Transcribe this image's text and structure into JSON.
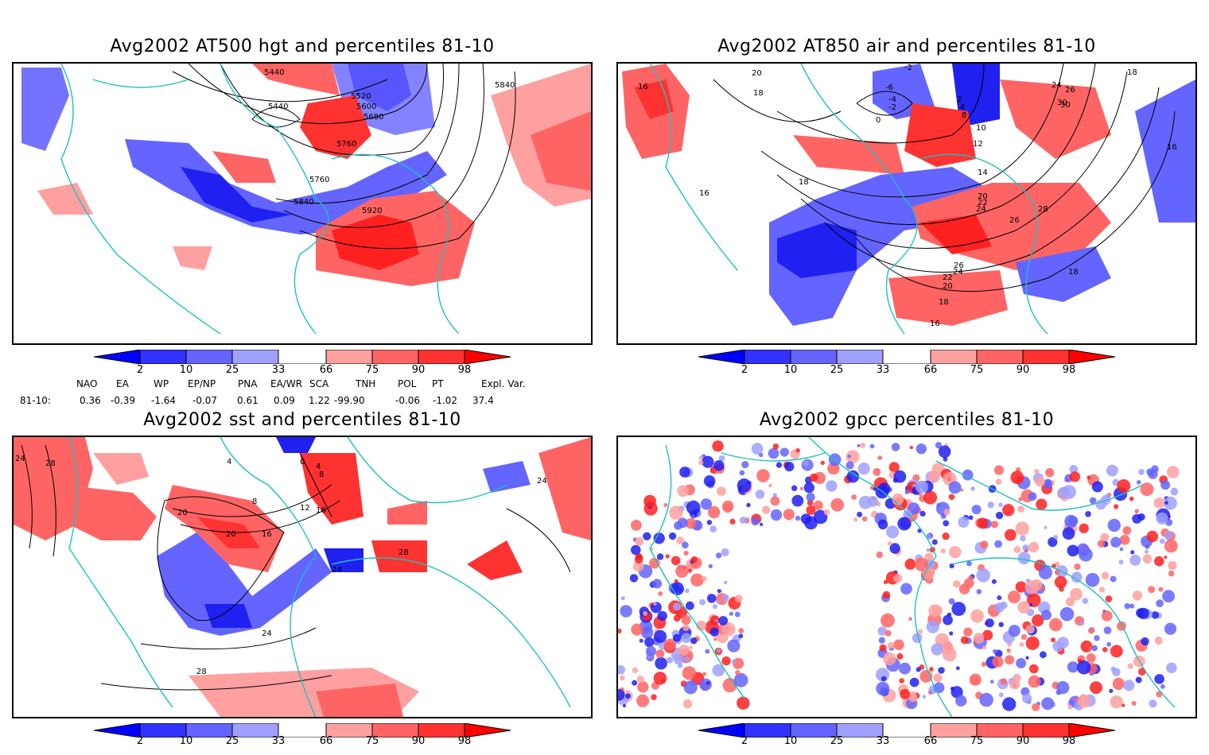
{
  "panels": [
    {
      "title": "Avg2002 AT500 hgt and percentiles 81-10",
      "contour_labels": [
        "5440",
        "5440",
        "5520",
        "5600",
        "5680",
        "5760",
        "5760",
        "5840",
        "5920",
        "5840"
      ]
    },
    {
      "title": "Avg2002 AT850 air and percentiles 81-10",
      "contour_labels": [
        "16",
        "20",
        "18",
        "-2",
        "-6",
        "-4",
        "-2",
        "0",
        "2",
        "4",
        "8",
        "10",
        "12",
        "14",
        "20",
        "22",
        "24",
        "26",
        "28",
        "30",
        "24",
        "26",
        "30",
        "18",
        "16",
        "16",
        "18",
        "26",
        "24",
        "22",
        "20",
        "18",
        "16",
        "18"
      ]
    },
    {
      "title": "Avg2002 sst and percentiles 81-10",
      "contour_labels": [
        "24",
        "28",
        "0",
        "4",
        "8",
        "12",
        "16",
        "20",
        "4",
        "8",
        "16",
        "20",
        "24",
        "28",
        "24",
        "28",
        "24"
      ]
    },
    {
      "title": "Avg2002 gpcc percentiles 81-10",
      "contour_labels": []
    }
  ],
  "colorbar": {
    "labels": [
      "2",
      "10",
      "25",
      "33",
      "66",
      "75",
      "90",
      "98"
    ],
    "colors": [
      "#0000ff",
      "#3232ff",
      "#6464ff",
      "#a0a0ff",
      "#ffffff",
      "#ffa0a0",
      "#ff6464",
      "#ff3232",
      "#ff0000"
    ]
  },
  "indices": {
    "header": [
      "NAO",
      "EA",
      "WP",
      "EP/NP",
      "PNA",
      "EA/WR",
      "SCA",
      "TNH",
      "POL",
      "PT",
      "Expl. Var."
    ],
    "row_label": "81-10:",
    "values": [
      "0.36",
      "-0.39",
      "-1.64",
      "-0.07",
      "0.61",
      "0.09",
      "1.22",
      "-99.90",
      "-0.06",
      "-1.02",
      "37.4"
    ]
  },
  "colors": {
    "coast": "#20c0c0",
    "blue_dark": "#2020f0",
    "blue_mid": "#5555f5",
    "blue_light": "#a0a0ff",
    "red_light": "#ffa0a0",
    "red_mid": "#ff6464",
    "red_dark": "#ff2020"
  }
}
